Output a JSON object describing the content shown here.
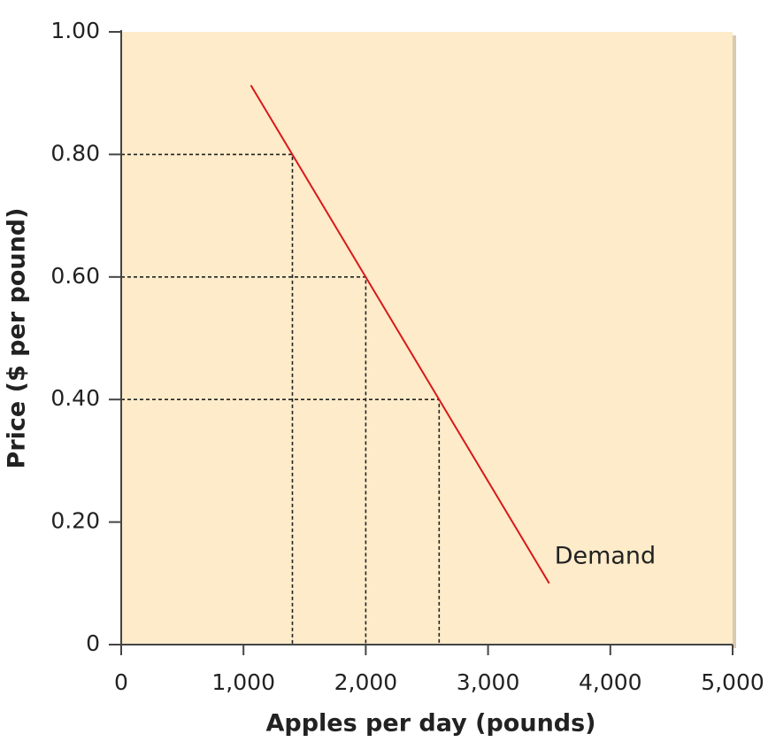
{
  "chart_data": {
    "type": "line",
    "xlabel": "Apples per day (pounds)",
    "ylabel": "Price ($ per pound)",
    "xlim": [
      0,
      5000
    ],
    "ylim": [
      0,
      1
    ],
    "xticks": [
      0,
      {
        "value": 1000,
        "label": "1,000"
      },
      {
        "value": 2000,
        "label": "2,000"
      },
      {
        "value": 3000,
        "label": "3,000"
      },
      {
        "value": 4000,
        "label": "4,000"
      },
      {
        "value": 5000,
        "label": "5,000"
      }
    ],
    "yticks": [
      0,
      {
        "value": 0.2,
        "label": "0.20"
      },
      {
        "value": 0.4,
        "label": "0.40"
      },
      {
        "value": 0.6,
        "label": "0.60"
      },
      {
        "value": 0.8,
        "label": "0.80"
      },
      {
        "value": 1,
        "label": "1.00"
      }
    ],
    "series": [
      {
        "name": "Demand",
        "color": "#d7191c",
        "x": [
          1060,
          3500
        ],
        "values": [
          0.913,
          0.1
        ]
      }
    ],
    "reference_points": {
      "x": [
        1400,
        2000,
        2600
      ],
      "y": [
        0.8,
        0.6,
        0.4
      ]
    },
    "background": "#fdebc9"
  }
}
